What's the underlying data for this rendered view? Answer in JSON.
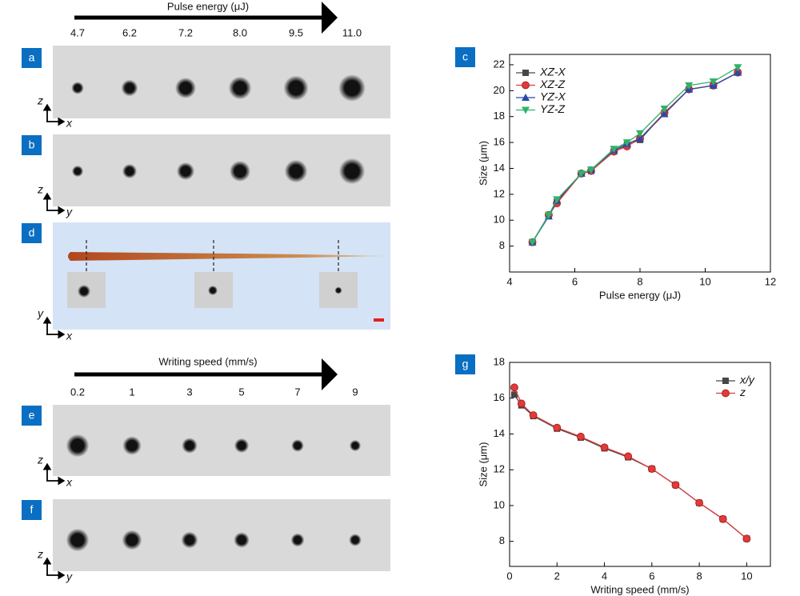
{
  "energy_arrow": {
    "label": "Pulse energy (μJ)",
    "values": [
      "4.7",
      "6.2",
      "7.2",
      "8.0",
      "9.5",
      "11.0"
    ]
  },
  "speed_arrow": {
    "label": "Writing speed (mm/s)",
    "values": [
      "0.2",
      "1",
      "3",
      "5",
      "7",
      "9"
    ]
  },
  "panels": {
    "a": "a",
    "b": "b",
    "c": "c",
    "d": "d",
    "e": "e",
    "f": "f",
    "g": "g"
  },
  "axes": {
    "a": [
      "z",
      "x"
    ],
    "b": [
      "z",
      "y"
    ],
    "d": [
      "y",
      "x"
    ],
    "e": [
      "z",
      "x"
    ],
    "f": [
      "z",
      "y"
    ]
  },
  "chart_data": [
    {
      "type": "line",
      "xlabel": "Pulse energy (μJ)",
      "ylabel": "Size (μm)",
      "x": [
        4.7,
        5.2,
        5.45,
        6.2,
        6.5,
        7.2,
        7.6,
        8.0,
        8.75,
        9.5,
        10.25,
        11.0
      ],
      "series": [
        {
          "name": "XZ-X",
          "color": "#474747",
          "marker": "square",
          "values": [
            8.3,
            10.4,
            11.4,
            13.6,
            13.8,
            15.3,
            15.8,
            16.2,
            18.3,
            20.1,
            20.4,
            21.4
          ]
        },
        {
          "name": "XZ-Z",
          "color": "#e03a3a",
          "marker": "circle",
          "values": [
            8.3,
            10.4,
            11.3,
            13.6,
            13.8,
            15.3,
            15.7,
            16.3,
            18.3,
            20.1,
            20.4,
            21.4
          ]
        },
        {
          "name": "YZ-X",
          "color": "#2a4aa8",
          "marker": "triangle-up",
          "values": [
            8.3,
            10.3,
            11.5,
            13.6,
            13.9,
            15.4,
            15.9,
            16.3,
            18.2,
            20.1,
            20.4,
            21.4
          ]
        },
        {
          "name": "YZ-Z",
          "color": "#2fb36a",
          "marker": "triangle-down",
          "values": [
            8.3,
            10.4,
            11.6,
            13.6,
            13.9,
            15.5,
            16.0,
            16.7,
            18.6,
            20.4,
            20.7,
            21.8
          ]
        }
      ],
      "xlim": [
        4,
        12
      ],
      "xticks": [
        4,
        6,
        8,
        10,
        12
      ],
      "ylim": [
        6,
        22.8
      ],
      "yticks": [
        8,
        10,
        12,
        14,
        16,
        18,
        20,
        22
      ],
      "legend": "upper left"
    },
    {
      "type": "line",
      "xlabel": "Writing speed (mm/s)",
      "ylabel": "Size (μm)",
      "x": [
        0.2,
        0.5,
        1,
        2,
        3,
        4,
        5,
        6,
        7,
        8,
        9,
        10
      ],
      "series": [
        {
          "name": "x/y",
          "color": "#474747",
          "marker": "square",
          "values": [
            16.2,
            15.6,
            15.0,
            14.3,
            13.8,
            13.2,
            12.7,
            12.05,
            11.15,
            10.15,
            9.25,
            8.15
          ]
        },
        {
          "name": "z",
          "color": "#e03a3a",
          "marker": "circle",
          "values": [
            16.6,
            15.7,
            15.05,
            14.35,
            13.85,
            13.25,
            12.75,
            12.05,
            11.15,
            10.15,
            9.25,
            8.15
          ]
        }
      ],
      "xlim": [
        0,
        11
      ],
      "xticks": [
        0,
        2,
        4,
        6,
        8,
        10
      ],
      "ylim": [
        6.6,
        18
      ],
      "yticks": [
        8,
        10,
        12,
        14,
        16,
        18
      ],
      "legend": "upper right"
    }
  ]
}
